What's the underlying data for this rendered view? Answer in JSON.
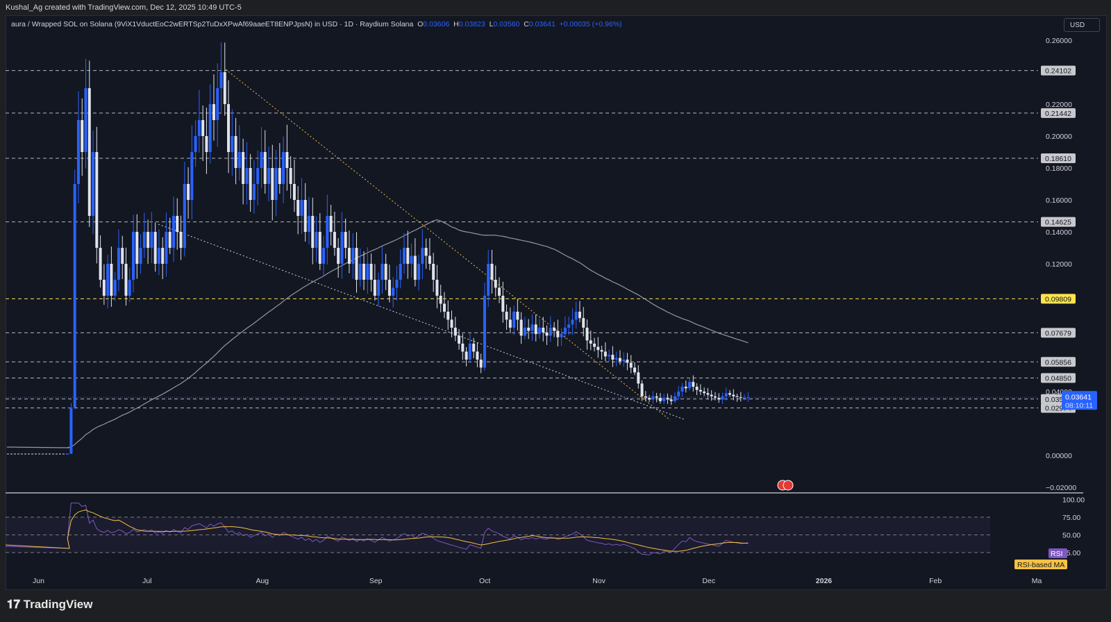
{
  "header": {
    "attribution": "Kushal_Ag created with TradingView.com, Dec 12, 2025 10:49 UTC-5"
  },
  "legend": {
    "symbol": "aura / Wrapped SOL on Solana (9ViX1VductEoC2wERTSp2TuDxXPwAf69aaeET8ENPJpsN) in USD · 1D · Raydium Solana",
    "o_label": "O",
    "o": "0.03606",
    "h_label": "H",
    "h": "0.03823",
    "l_label": "L",
    "l": "0.03560",
    "c_label": "C",
    "c": "0.03641",
    "change": "+0.00035 (+0.96%)"
  },
  "currency_button": "USD",
  "footer": {
    "brand": "TradingView"
  },
  "colors": {
    "up": "#2962ff",
    "down": "#e0e3eb",
    "background": "#131722",
    "ma": "#9598a1",
    "rsi": "#7e57c2",
    "rsi_ma": "#f5c242",
    "level_highlight": "#fbe54d"
  },
  "chart_data": {
    "type": "candlestick",
    "start_date": "2025-06-09",
    "interval": "1D",
    "closes": [
      0.001,
      0.03,
      0.17,
      0.21,
      0.19,
      0.23,
      0.15,
      0.19,
      0.13,
      0.11,
      0.1,
      0.12,
      0.1,
      0.11,
      0.13,
      0.12,
      0.1,
      0.11,
      0.14,
      0.12,
      0.13,
      0.14,
      0.13,
      0.14,
      0.12,
      0.13,
      0.12,
      0.14,
      0.13,
      0.15,
      0.14,
      0.13,
      0.17,
      0.16,
      0.19,
      0.2,
      0.21,
      0.2,
      0.19,
      0.22,
      0.21,
      0.23,
      0.24,
      0.22,
      0.19,
      0.2,
      0.18,
      0.19,
      0.17,
      0.18,
      0.16,
      0.17,
      0.18,
      0.19,
      0.17,
      0.18,
      0.16,
      0.18,
      0.17,
      0.19,
      0.18,
      0.17,
      0.16,
      0.15,
      0.16,
      0.14,
      0.15,
      0.13,
      0.14,
      0.12,
      0.13,
      0.15,
      0.14,
      0.13,
      0.12,
      0.14,
      0.13,
      0.12,
      0.13,
      0.11,
      0.12,
      0.11,
      0.12,
      0.11,
      0.1,
      0.11,
      0.12,
      0.11,
      0.1,
      0.105,
      0.11,
      0.12,
      0.13,
      0.12,
      0.125,
      0.11,
      0.12,
      0.13,
      0.125,
      0.12,
      0.11,
      0.1,
      0.095,
      0.09,
      0.085,
      0.08,
      0.075,
      0.07,
      0.065,
      0.06,
      0.07,
      0.065,
      0.06,
      0.055,
      0.1,
      0.12,
      0.11,
      0.105,
      0.1,
      0.09,
      0.085,
      0.08,
      0.09,
      0.085,
      0.075,
      0.08,
      0.078,
      0.082,
      0.076,
      0.08,
      0.077,
      0.075,
      0.08,
      0.078,
      0.074,
      0.076,
      0.08,
      0.082,
      0.085,
      0.09,
      0.086,
      0.08,
      0.072,
      0.07,
      0.068,
      0.066,
      0.065,
      0.062,
      0.063,
      0.06,
      0.061,
      0.059,
      0.06,
      0.058,
      0.055,
      0.052,
      0.045,
      0.037,
      0.036,
      0.035,
      0.037,
      0.036,
      0.034,
      0.036,
      0.035,
      0.034,
      0.037,
      0.04,
      0.043,
      0.042,
      0.046,
      0.043,
      0.041,
      0.04,
      0.039,
      0.038,
      0.037,
      0.036,
      0.035,
      0.037,
      0.039,
      0.038,
      0.037,
      0.0365,
      0.036,
      0.0362,
      0.03641
    ],
    "price_axis": {
      "ticks": [
        "0.26000",
        "0.22000",
        "0.20000",
        "0.18000",
        "0.16000",
        "0.14000",
        "0.12000",
        "0.04000",
        "0.00000",
        "−0.02000"
      ],
      "values": [
        0.26,
        0.22,
        0.2,
        0.18,
        0.16,
        0.14,
        0.12,
        0.04,
        0,
        -0.02
      ],
      "range": [
        -0.02,
        0.26
      ]
    },
    "levels": [
      {
        "label": "0.24102",
        "value": 0.24102
      },
      {
        "label": "0.21442",
        "value": 0.21442
      },
      {
        "label": "0.18610",
        "value": 0.1861
      },
      {
        "label": "0.14625",
        "value": 0.14625
      },
      {
        "label": "0.09809",
        "value": 0.09809,
        "highlight": true
      },
      {
        "label": "0.07679",
        "value": 0.07679
      },
      {
        "label": "0.05856",
        "value": 0.05856
      },
      {
        "label": "0.04850",
        "value": 0.0485
      },
      {
        "label": "0.03530",
        "value": 0.0353
      },
      {
        "label": "0.02974",
        "value": 0.02974
      }
    ],
    "last_price": {
      "value": "0.03641",
      "countdown": "08:10:11"
    },
    "time_axis": {
      "labels": [
        "Jun",
        "Jul",
        "Aug",
        "Sep",
        "Oct",
        "Nov",
        "Dec",
        "2026",
        "Feb",
        "Ma"
      ],
      "dates": [
        "2025-06-01",
        "2025-07-01",
        "2025-08-01",
        "2025-09-01",
        "2025-10-01",
        "2025-11-01",
        "2025-12-01",
        "2026-01-01",
        "2026-02-01",
        "2026-03-01"
      ]
    },
    "rsi": {
      "ticks": [
        "100.00",
        "75.00",
        "50.00",
        "25.00"
      ],
      "values": [
        100,
        75,
        50,
        25
      ],
      "label": "RSI",
      "ma_label": "RSI-based MA"
    }
  }
}
